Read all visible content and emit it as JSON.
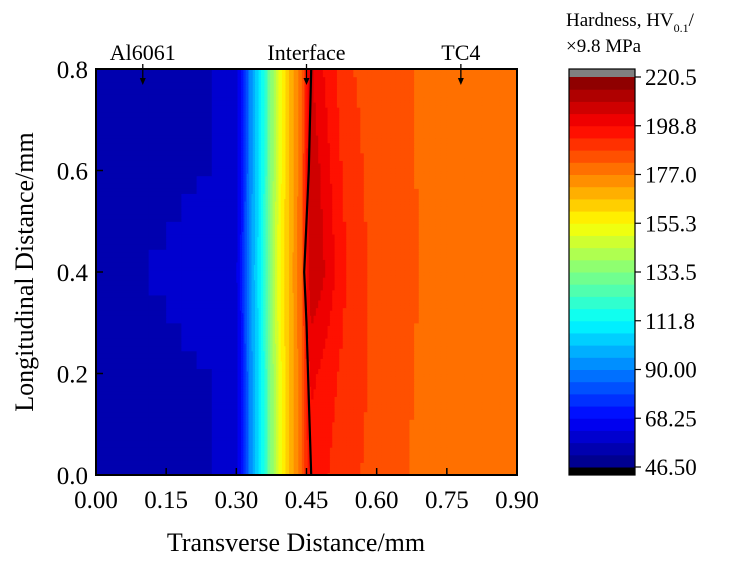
{
  "chart_data": {
    "type": "heatmap",
    "title": "",
    "xlabel": "Transverse Distance/mm",
    "ylabel": "Longitudinal Distance/mm",
    "xlim": [
      0.0,
      0.9
    ],
    "ylim": [
      0.0,
      0.8
    ],
    "x_ticks": [
      "0.00",
      "0.15",
      "0.30",
      "0.45",
      "0.60",
      "0.75",
      "0.90"
    ],
    "y_ticks": [
      "0.0",
      "0.2",
      "0.4",
      "0.6",
      "0.8"
    ],
    "colorbar": {
      "title_main": "Hardness, HV",
      "title_sub": "0.1",
      "title_tail": "/",
      "title_line2": "×9.8 MPa",
      "range": [
        46.5,
        220.5
      ],
      "levels": 32,
      "under_color": "#000000",
      "over_color": "#808080",
      "tick_labels": [
        "220.5",
        "198.8",
        "177.0",
        "155.3",
        "133.5",
        "111.8",
        "90.00",
        "68.25",
        "46.50"
      ]
    },
    "annotations": [
      {
        "text": "Al6061",
        "x": 0.1,
        "y": 0.8
      },
      {
        "text": "Interface",
        "x": 0.45,
        "y": 0.8
      },
      {
        "text": "TC4",
        "x": 0.78,
        "y": 0.8
      }
    ],
    "interface_line": {
      "x": [
        0.46,
        0.455,
        0.45,
        0.445,
        0.45,
        0.455,
        0.46
      ],
      "y": [
        0.8,
        0.6,
        0.5,
        0.4,
        0.3,
        0.15,
        0.0
      ]
    },
    "hardness_profile": {
      "description_rows": [
        "0.8",
        "0.6",
        "0.4",
        "0.2",
        "0.0"
      ],
      "x": [
        0.0,
        0.15,
        0.28,
        0.3,
        0.31,
        0.32,
        0.33,
        0.34,
        0.35,
        0.36,
        0.37,
        0.38,
        0.39,
        0.4,
        0.41,
        0.42,
        0.43,
        0.44,
        0.45,
        0.46,
        0.48,
        0.5,
        0.52,
        0.55,
        0.58,
        0.62,
        0.66,
        0.7,
        0.75,
        0.9
      ],
      "rows": [
        {
          "y": 0.8,
          "values": [
            56,
            56,
            58,
            60,
            68,
            80,
            92,
            100,
            108,
            118,
            130,
            140,
            150,
            158,
            164,
            170,
            176,
            182,
            196,
            205,
            200,
            196,
            192,
            188,
            186,
            184,
            183,
            182,
            180,
            178
          ]
        },
        {
          "y": 0.6,
          "values": [
            56,
            56,
            58,
            60,
            68,
            80,
            92,
            100,
            108,
            118,
            130,
            140,
            150,
            158,
            164,
            170,
            176,
            182,
            198,
            208,
            204,
            199,
            194,
            190,
            187,
            185,
            183,
            182,
            180,
            178
          ]
        },
        {
          "y": 0.4,
          "values": [
            56,
            58,
            62,
            62,
            70,
            82,
            94,
            102,
            110,
            120,
            132,
            142,
            152,
            160,
            165,
            171,
            177,
            183,
            200,
            209,
            206,
            202,
            196,
            191,
            188,
            186,
            184,
            182,
            180,
            178
          ]
        },
        {
          "y": 0.2,
          "values": [
            56,
            56,
            58,
            60,
            68,
            80,
            92,
            100,
            108,
            118,
            130,
            140,
            150,
            158,
            164,
            170,
            176,
            182,
            194,
            200,
            198,
            195,
            193,
            190,
            188,
            186,
            184,
            181,
            179,
            178
          ]
        },
        {
          "y": 0.0,
          "values": [
            56,
            56,
            58,
            60,
            68,
            80,
            92,
            100,
            108,
            118,
            130,
            140,
            150,
            158,
            164,
            170,
            176,
            182,
            192,
            196,
            195,
            193,
            191,
            189,
            187,
            185,
            183,
            180,
            178,
            178
          ]
        }
      ]
    }
  }
}
